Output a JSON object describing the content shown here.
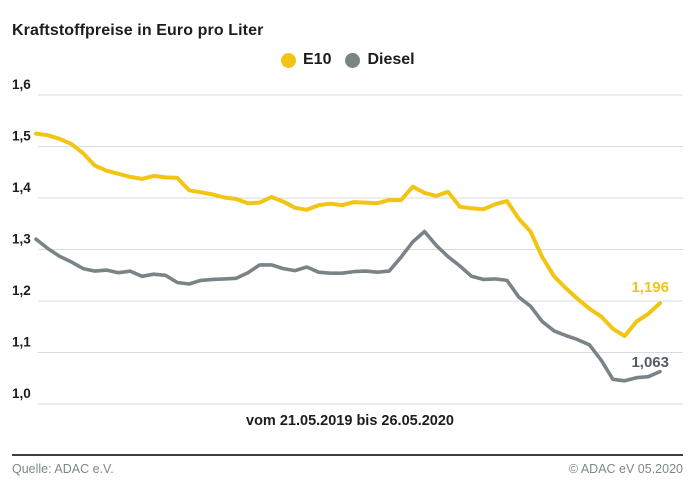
{
  "title": "Kraftstoffpreise in Euro pro Liter",
  "legend": {
    "e10_label": "E10",
    "diesel_label": "Diesel"
  },
  "colors": {
    "e10": "#f2c413",
    "diesel": "#7a8487",
    "diesel_label_text": "#515b60",
    "grid": "#d8dcdd",
    "tick_text": "#1d1d1b"
  },
  "end_labels": {
    "e10": "1,196",
    "diesel": "1,063"
  },
  "x_axis_label": "vom 21.05.2019 bis 26.05.2020",
  "footer": {
    "source": "Quelle: ADAC e.V.",
    "copyright": "© ADAC eV 05.2020"
  },
  "chart_data": {
    "type": "line",
    "title": "Kraftstoffpreise in Euro pro Liter",
    "xlabel": "vom 21.05.2019 bis 26.05.2020",
    "ylabel": "Euro pro Liter",
    "ylim": [
      1.0,
      1.6
    ],
    "grid": "horizontal",
    "legend_position": "top-center",
    "y_ticks": [
      {
        "value": 1.6,
        "label": "1,6"
      },
      {
        "value": 1.5,
        "label": "1,5"
      },
      {
        "value": 1.4,
        "label": "1,4"
      },
      {
        "value": 1.3,
        "label": "1,3"
      },
      {
        "value": 1.2,
        "label": "1,2"
      },
      {
        "value": 1.1,
        "label": "1,1"
      },
      {
        "value": 1.0,
        "label": "1,0"
      }
    ],
    "x_range": {
      "start": "21.05.2019",
      "end": "26.05.2020",
      "interval": "weekly"
    },
    "series": [
      {
        "name": "E10",
        "color": "#f2c413",
        "final_value_label": "1,196",
        "values": [
          1.525,
          1.522,
          1.515,
          1.505,
          1.487,
          1.463,
          1.453,
          1.447,
          1.441,
          1.437,
          1.443,
          1.44,
          1.439,
          1.415,
          1.411,
          1.407,
          1.401,
          1.398,
          1.39,
          1.391,
          1.402,
          1.393,
          1.381,
          1.377,
          1.386,
          1.389,
          1.386,
          1.392,
          1.391,
          1.39,
          1.396,
          1.396,
          1.422,
          1.41,
          1.404,
          1.412,
          1.383,
          1.38,
          1.378,
          1.388,
          1.394,
          1.36,
          1.335,
          1.285,
          1.248,
          1.225,
          1.204,
          1.185,
          1.17,
          1.146,
          1.132,
          1.16,
          1.175,
          1.196
        ]
      },
      {
        "name": "Diesel",
        "color": "#7a8487",
        "final_value_label": "1,063",
        "values": [
          1.32,
          1.302,
          1.287,
          1.276,
          1.263,
          1.258,
          1.26,
          1.255,
          1.258,
          1.248,
          1.252,
          1.25,
          1.236,
          1.233,
          1.24,
          1.242,
          1.243,
          1.244,
          1.255,
          1.27,
          1.27,
          1.263,
          1.259,
          1.266,
          1.256,
          1.254,
          1.254,
          1.257,
          1.258,
          1.256,
          1.258,
          1.285,
          1.315,
          1.335,
          1.308,
          1.286,
          1.268,
          1.248,
          1.242,
          1.243,
          1.24,
          1.208,
          1.19,
          1.16,
          1.142,
          1.133,
          1.125,
          1.115,
          1.085,
          1.048,
          1.045,
          1.051,
          1.053,
          1.063
        ]
      }
    ]
  }
}
